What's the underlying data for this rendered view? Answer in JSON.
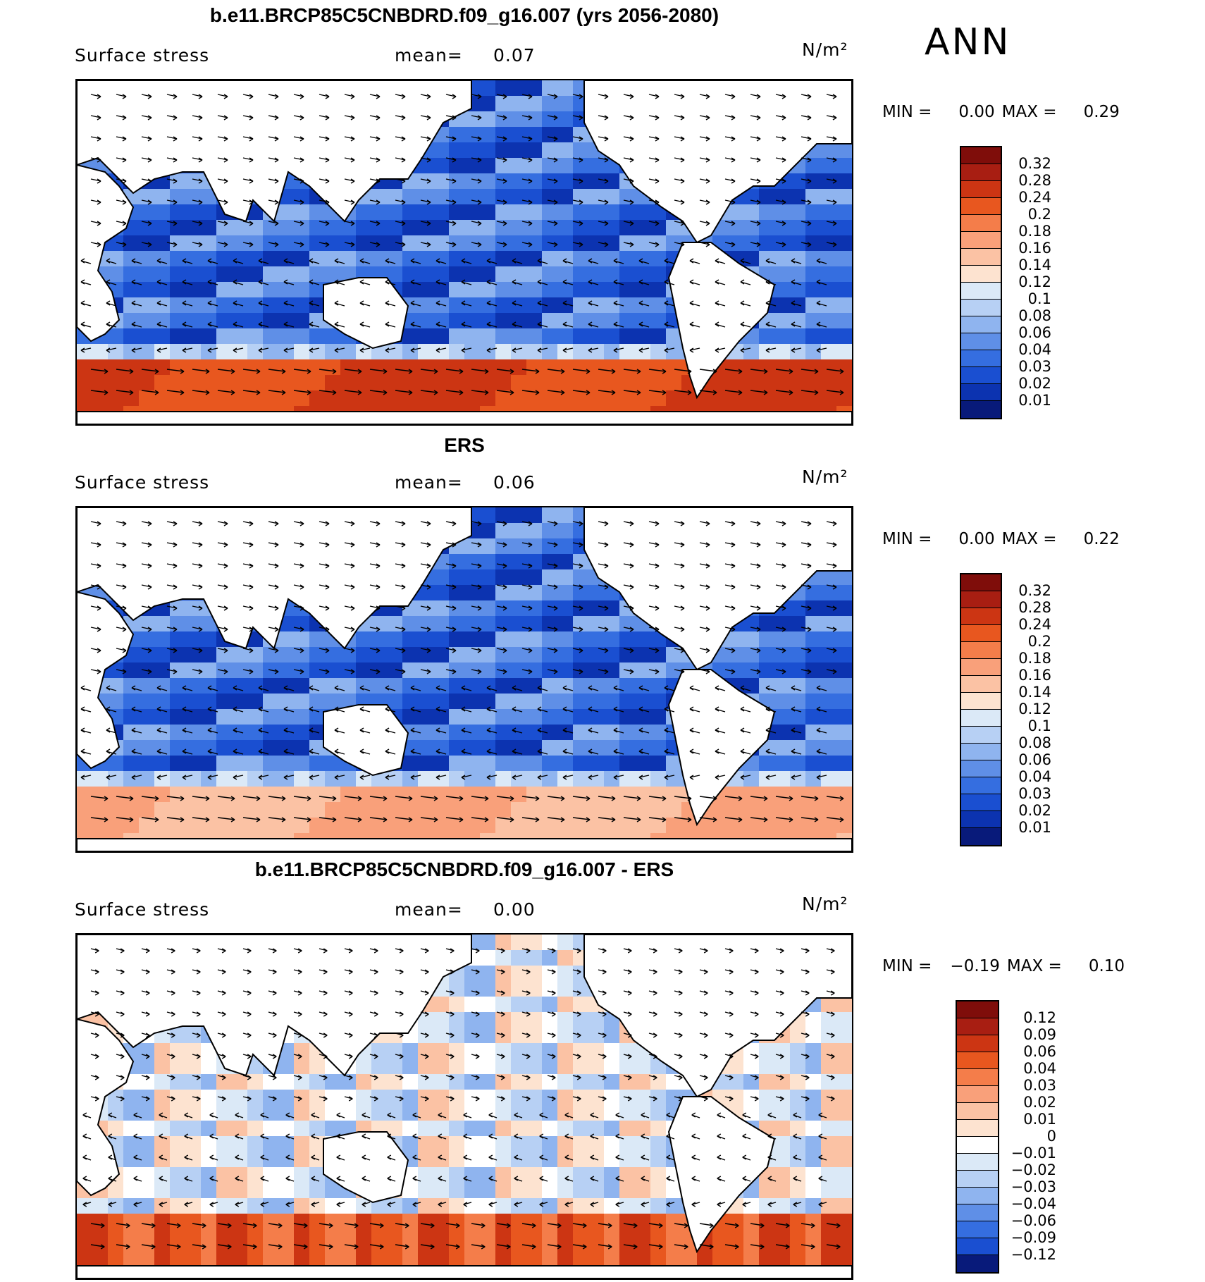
{
  "season": "ANN",
  "panels": [
    {
      "id": "model",
      "title": "b.e11.BRCP85C5CNBDRD.f09_g16.007 (yrs 2056-2080)",
      "variable": "Surface stress",
      "mean_label": "mean=",
      "mean_value": "0.07",
      "units": "N/m²",
      "min_label": "MIN =",
      "min_value": "0.00",
      "max_label": "MAX =",
      "max_value": "0.29",
      "colorbar_labels": [
        "0.32",
        "0.28",
        "0.24",
        "0.2",
        "0.18",
        "0.16",
        "0.14",
        "0.12",
        "0.1",
        "0.08",
        "0.06",
        "0.04",
        "0.03",
        "0.02",
        "0.01"
      ],
      "colorbar_colors": [
        "#7f0d0a",
        "#a81e12",
        "#cc3513",
        "#e8571f",
        "#f47d4a",
        "#f9a07a",
        "#fbc2a4",
        "#fde3d0",
        "#dbe9f7",
        "#b7d0f4",
        "#8fb4ef",
        "#5f8fe7",
        "#356ee0",
        "#1a4fd1",
        "#0c33b0",
        "#081a7a"
      ]
    },
    {
      "id": "obs",
      "title": "ERS",
      "variable": "Surface stress",
      "mean_label": "mean=",
      "mean_value": "0.06",
      "units": "N/m²",
      "min_label": "MIN =",
      "min_value": "0.00",
      "max_label": "MAX =",
      "max_value": "0.22",
      "colorbar_labels": [
        "0.32",
        "0.28",
        "0.24",
        "0.2",
        "0.18",
        "0.16",
        "0.14",
        "0.12",
        "0.1",
        "0.08",
        "0.06",
        "0.04",
        "0.03",
        "0.02",
        "0.01"
      ],
      "colorbar_colors": [
        "#7f0d0a",
        "#a81e12",
        "#cc3513",
        "#e8571f",
        "#f47d4a",
        "#f9a07a",
        "#fbc2a4",
        "#fde3d0",
        "#dbe9f7",
        "#b7d0f4",
        "#8fb4ef",
        "#5f8fe7",
        "#356ee0",
        "#1a4fd1",
        "#0c33b0",
        "#081a7a"
      ]
    },
    {
      "id": "diff",
      "title": "b.e11.BRCP85C5CNBDRD.f09_g16.007 - ERS",
      "variable": "Surface stress",
      "mean_label": "mean=",
      "mean_value": "0.00",
      "units": "N/m²",
      "min_label": "MIN =",
      "min_value": "−0.19",
      "max_label": "MAX =",
      "max_value": "0.10",
      "colorbar_labels": [
        "0.12",
        "0.09",
        "0.06",
        "0.04",
        "0.03",
        "0.02",
        "0.01",
        "0",
        "−0.01",
        "−0.02",
        "−0.03",
        "−0.04",
        "−0.06",
        "−0.09",
        "−0.12"
      ],
      "colorbar_colors": [
        "#7f0d0a",
        "#a81e12",
        "#cc3513",
        "#e8571f",
        "#f47d4a",
        "#f9a07a",
        "#fbc2a4",
        "#fde3d0",
        "#ffffff",
        "#dbe9f7",
        "#b7d0f4",
        "#8fb4ef",
        "#5f8fe7",
        "#356ee0",
        "#1a4fd1",
        "#081a7a"
      ]
    }
  ]
}
